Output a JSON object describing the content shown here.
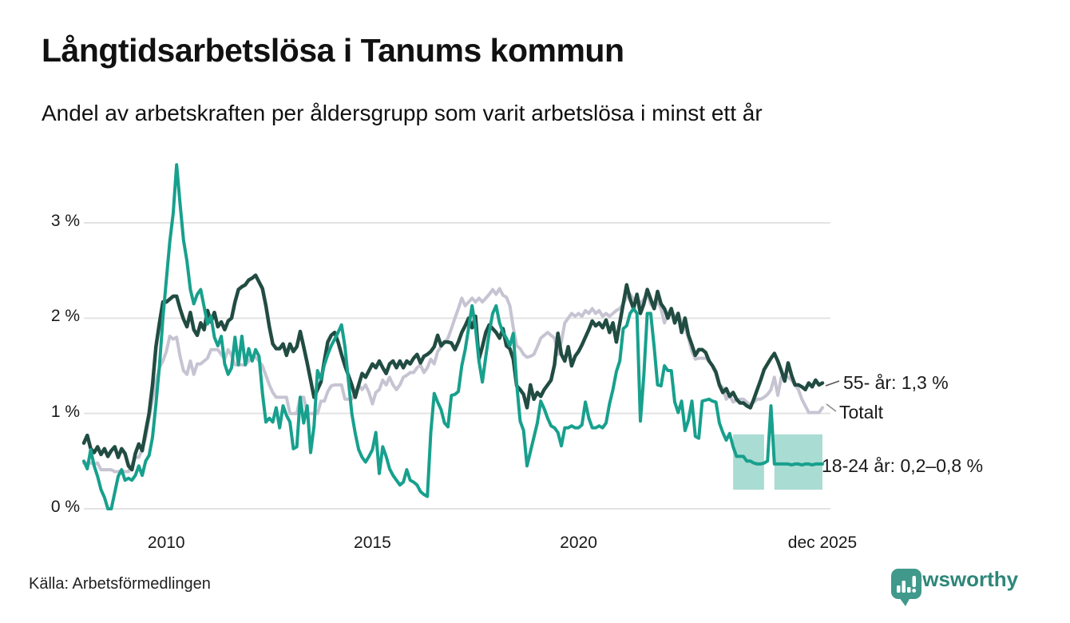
{
  "header": {
    "title": "Långtidsarbetslösa i Tanums kommun",
    "subtitle": "Andel av arbetskraften per åldersgrupp som varit arbetslösa i minst ett år"
  },
  "footer": {
    "source": "Källa: Arbetsförmedlingen",
    "logo_text": "Newsworthy"
  },
  "colors": {
    "teal_line": "#17a08d",
    "dark_green_line": "#214c42",
    "gray_line": "#c6c4d2",
    "band_fill": "#a9dcd2",
    "grid": "#e3e3e3",
    "logo_teal": "#40998b",
    "logo_text": "#2e8679"
  },
  "chart_data": {
    "type": "line",
    "title": "Långtidsarbetslösa i Tanums kommun",
    "subtitle": "Andel av arbetskraften per åldersgrupp som varit arbetslösa i minst ett år",
    "x_start": "2008-01",
    "x_end": "2025-12",
    "x_monthly_points": 216,
    "ylim": [
      0,
      3.7
    ],
    "grid": "horizontal",
    "legend_position": "end-of-line-labels",
    "y_ticks": [
      {
        "value": 0,
        "label": "0 %"
      },
      {
        "value": 1,
        "label": "1 %"
      },
      {
        "value": 2,
        "label": "2 %"
      },
      {
        "value": 3,
        "label": "3 %"
      }
    ],
    "x_ticks": [
      {
        "month_index": 24,
        "label": "2010"
      },
      {
        "month_index": 84,
        "label": "2015"
      },
      {
        "month_index": 144,
        "label": "2020"
      },
      {
        "month_index": 215,
        "label": "dec 2025"
      }
    ],
    "series": [
      {
        "name": "Totalt",
        "end_label": "Totalt",
        "color": "#c6c4d2",
        "stroke_width": 4,
        "values": [
          0.48,
          0.48,
          0.48,
          0.47,
          0.48,
          0.41,
          0.41,
          0.41,
          0.41,
          0.39,
          0.39,
          0.4,
          0.39,
          0.39,
          0.46,
          0.54,
          0.54,
          0.62,
          0.75,
          0.95,
          1.15,
          1.33,
          1.48,
          1.55,
          1.65,
          1.81,
          1.78,
          1.8,
          1.6,
          1.45,
          1.41,
          1.55,
          1.41,
          1.52,
          1.52,
          1.55,
          1.58,
          1.67,
          1.67,
          1.67,
          1.62,
          1.57,
          1.67,
          1.61,
          1.51,
          1.51,
          1.51,
          1.51,
          1.55,
          1.59,
          1.59,
          1.55,
          1.5,
          1.4,
          1.3,
          1.22,
          1.17,
          1.17,
          1.17,
          1.17,
          1.0,
          1.0,
          1.0,
          1.17,
          1.17,
          1.0,
          1.0,
          1.0,
          1.0,
          1.13,
          1.13,
          1.23,
          1.29,
          1.3,
          1.3,
          1.3,
          1.15,
          1.15,
          1.15,
          1.22,
          1.3,
          1.25,
          1.3,
          1.22,
          1.1,
          1.22,
          1.25,
          1.35,
          1.3,
          1.38,
          1.3,
          1.25,
          1.3,
          1.38,
          1.4,
          1.43,
          1.43,
          1.48,
          1.51,
          1.43,
          1.48,
          1.57,
          1.52,
          1.65,
          1.7,
          1.75,
          1.79,
          1.89,
          2.0,
          2.1,
          2.21,
          2.13,
          2.17,
          2.21,
          2.17,
          2.21,
          2.17,
          2.21,
          2.25,
          2.3,
          2.25,
          2.31,
          2.24,
          2.22,
          2.13,
          1.9,
          1.71,
          1.68,
          1.62,
          1.59,
          1.6,
          1.62,
          1.7,
          1.79,
          1.82,
          1.85,
          1.82,
          1.79,
          1.62,
          1.75,
          1.95,
          2.0,
          2.05,
          2.02,
          2.05,
          2.02,
          2.08,
          2.05,
          2.1,
          2.05,
          2.08,
          2.02,
          2.05,
          2.02,
          2.05,
          2.08,
          2.1,
          2.15,
          2.22,
          2.25,
          2.2,
          2.22,
          2.15,
          2.2,
          2.25,
          2.15,
          2.1,
          2.18,
          2.1,
          1.95,
          2.05,
          2.1,
          2.0,
          2.05,
          1.95,
          1.9,
          1.79,
          1.65,
          1.57,
          1.58,
          1.58,
          1.58,
          1.55,
          1.5,
          1.45,
          1.31,
          1.27,
          1.15,
          1.19,
          1.12,
          1.14,
          1.15,
          1.15,
          1.12,
          1.09,
          1.12,
          1.15,
          1.15,
          1.17,
          1.2,
          1.25,
          1.38,
          1.19,
          1.38,
          1.4,
          1.38,
          1.35,
          1.3,
          1.25,
          1.15,
          1.08,
          1.01,
          1.01,
          1.01,
          1.01,
          1.06
        ]
      },
      {
        "name": "55- år",
        "end_label": "55- år: 1,3 %",
        "color": "#214c42",
        "stroke_width": 4.5,
        "values": [
          0.69,
          0.77,
          0.63,
          0.59,
          0.65,
          0.57,
          0.63,
          0.55,
          0.61,
          0.65,
          0.54,
          0.63,
          0.58,
          0.45,
          0.41,
          0.58,
          0.68,
          0.61,
          0.81,
          1.0,
          1.3,
          1.7,
          1.95,
          2.17,
          2.17,
          2.2,
          2.23,
          2.23,
          2.1,
          1.99,
          1.91,
          2.06,
          1.88,
          1.82,
          1.95,
          1.88,
          2.08,
          1.96,
          2.06,
          1.91,
          1.96,
          1.88,
          1.97,
          2.0,
          2.17,
          2.3,
          2.33,
          2.35,
          2.4,
          2.42,
          2.45,
          2.38,
          2.31,
          2.13,
          1.91,
          1.73,
          1.68,
          1.68,
          1.73,
          1.61,
          1.73,
          1.65,
          1.7,
          1.86,
          1.7,
          1.53,
          1.35,
          1.17,
          1.25,
          1.33,
          1.55,
          1.75,
          1.82,
          1.85,
          1.75,
          1.62,
          1.5,
          1.4,
          1.3,
          1.17,
          1.3,
          1.42,
          1.38,
          1.45,
          1.52,
          1.48,
          1.55,
          1.48,
          1.42,
          1.52,
          1.55,
          1.48,
          1.55,
          1.48,
          1.55,
          1.52,
          1.58,
          1.62,
          1.53,
          1.6,
          1.62,
          1.65,
          1.7,
          1.82,
          1.71,
          1.75,
          1.75,
          1.74,
          1.67,
          1.75,
          1.85,
          1.92,
          2.0,
          1.9,
          2.02,
          1.57,
          1.7,
          1.85,
          1.93,
          1.89,
          1.85,
          1.79,
          1.89,
          1.71,
          1.68,
          1.57,
          1.29,
          1.25,
          1.2,
          1.06,
          1.3,
          1.15,
          1.22,
          1.18,
          1.25,
          1.3,
          1.35,
          1.51,
          1.84,
          1.62,
          1.55,
          1.7,
          1.5,
          1.6,
          1.65,
          1.72,
          1.8,
          1.88,
          1.97,
          1.92,
          1.95,
          1.9,
          1.98,
          1.85,
          1.95,
          1.75,
          1.95,
          2.15,
          2.35,
          2.2,
          2.1,
          2.25,
          2.05,
          2.15,
          2.3,
          2.2,
          2.1,
          2.28,
          2.15,
          2.1,
          2.0,
          2.1,
          1.95,
          2.05,
          1.85,
          2.0,
          1.82,
          1.72,
          1.61,
          1.67,
          1.67,
          1.64,
          1.55,
          1.5,
          1.43,
          1.3,
          1.22,
          1.26,
          1.18,
          1.22,
          1.15,
          1.11,
          1.11,
          1.08,
          1.06,
          1.15,
          1.25,
          1.35,
          1.46,
          1.52,
          1.58,
          1.63,
          1.55,
          1.45,
          1.34,
          1.53,
          1.4,
          1.3,
          1.3,
          1.28,
          1.25,
          1.32,
          1.28,
          1.35,
          1.3,
          1.32
        ]
      },
      {
        "name": "18-24 år",
        "end_label": "18-24 år: 0,2–0,8 %",
        "color": "#17a08d",
        "stroke_width": 4,
        "values": [
          0.5,
          0.42,
          0.62,
          0.45,
          0.34,
          0.2,
          0.12,
          0.0,
          0.0,
          0.17,
          0.34,
          0.41,
          0.3,
          0.32,
          0.3,
          0.35,
          0.45,
          0.35,
          0.5,
          0.56,
          0.75,
          1.1,
          1.5,
          2.0,
          2.4,
          2.8,
          3.1,
          3.61,
          3.2,
          2.82,
          2.6,
          2.3,
          2.15,
          2.25,
          2.3,
          2.12,
          1.94,
          2.02,
          1.8,
          1.71,
          1.81,
          1.52,
          1.41,
          1.48,
          1.8,
          1.51,
          1.81,
          1.51,
          1.68,
          1.55,
          1.67,
          1.6,
          1.21,
          0.91,
          0.95,
          0.91,
          1.06,
          0.85,
          1.08,
          0.98,
          0.91,
          0.63,
          0.65,
          1.17,
          0.9,
          1.08,
          0.59,
          0.87,
          1.45,
          1.36,
          1.51,
          1.62,
          1.71,
          1.78,
          1.85,
          1.93,
          1.7,
          1.35,
          1.0,
          0.79,
          0.62,
          0.54,
          0.49,
          0.55,
          0.62,
          0.8,
          0.37,
          0.65,
          0.55,
          0.42,
          0.35,
          0.3,
          0.25,
          0.28,
          0.41,
          0.3,
          0.28,
          0.25,
          0.18,
          0.15,
          0.13,
          0.8,
          1.21,
          1.12,
          1.04,
          0.9,
          0.86,
          1.19,
          1.2,
          1.23,
          1.5,
          1.67,
          1.9,
          2.13,
          1.9,
          1.55,
          1.33,
          1.6,
          1.85,
          2.05,
          2.13,
          1.95,
          1.85,
          1.79,
          1.71,
          1.84,
          1.31,
          0.92,
          0.82,
          0.45,
          0.6,
          0.75,
          0.9,
          1.13,
          1.05,
          0.95,
          0.87,
          0.85,
          0.8,
          0.66,
          0.85,
          0.85,
          0.87,
          0.85,
          0.85,
          0.88,
          1.12,
          0.95,
          0.85,
          0.85,
          0.87,
          0.85,
          0.9,
          1.1,
          1.25,
          1.44,
          1.55,
          1.89,
          1.92,
          2.05,
          2.1,
          2.05,
          0.92,
          1.4,
          2.05,
          2.05,
          1.7,
          1.3,
          1.29,
          1.5,
          1.45,
          1.45,
          1.12,
          1.01,
          1.13,
          0.82,
          0.93,
          1.13,
          0.76,
          0.74,
          1.13,
          1.14,
          1.15,
          1.13,
          1.12,
          0.9,
          0.8,
          0.72,
          0.79,
          0.65,
          0.55,
          0.55,
          0.55,
          0.5,
          0.5,
          0.48,
          0.47,
          0.47,
          0.48,
          0.5,
          1.08,
          0.47,
          0.47,
          0.47,
          0.47,
          0.47,
          0.46,
          0.47,
          0.47,
          0.46,
          0.47,
          0.47,
          0.46,
          0.47,
          0.47,
          0.47
        ]
      }
    ],
    "band": {
      "series": "18-24 år",
      "label_range": "0,2–0,8 %",
      "low": 0.2,
      "high": 0.78,
      "color": "#a9dcd2",
      "segments": [
        {
          "from_month": 189,
          "to_month": 198
        },
        {
          "from_month": 201,
          "to_month": 215
        }
      ]
    }
  }
}
